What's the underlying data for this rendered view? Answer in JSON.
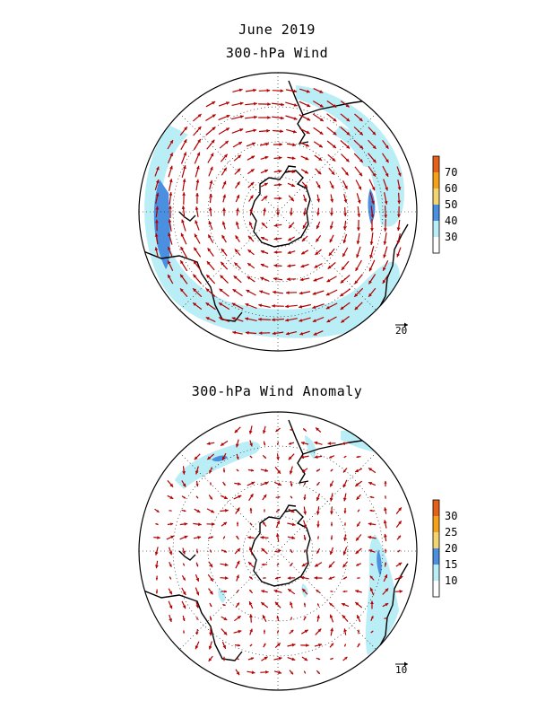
{
  "title": "June 2019",
  "panels": [
    {
      "id": "wind",
      "title": "300-hPa Wind",
      "colorbar": {
        "ticks": [
          "70",
          "60",
          "50",
          "40",
          "30"
        ],
        "colors": [
          "#ffffff",
          "#b9eef6",
          "#4a8fe0",
          "#f2d470",
          "#f5a21a",
          "#e6601a"
        ]
      },
      "reference_vector": "20",
      "arrow_color": "#b30000"
    },
    {
      "id": "anomaly",
      "title": "300-hPa Wind Anomaly",
      "colorbar": {
        "ticks": [
          "30",
          "25",
          "20",
          "15",
          "10"
        ],
        "colors": [
          "#ffffff",
          "#b9eef6",
          "#4a8fe0",
          "#f2d470",
          "#f5a21a",
          "#e6601a"
        ]
      },
      "reference_vector": "10",
      "arrow_color": "#b30000"
    }
  ]
}
